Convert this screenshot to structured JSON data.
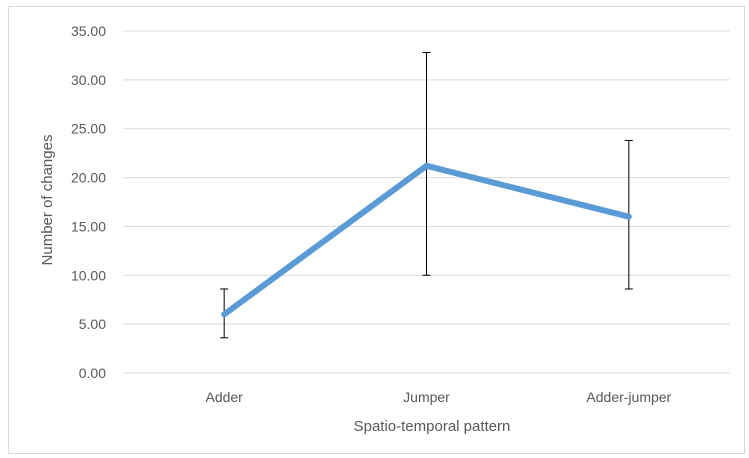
{
  "chart_data": {
    "type": "line",
    "title": "",
    "xlabel": "Spatio-temporal pattern",
    "ylabel": "Number of changes",
    "categories": [
      "Adder",
      "Jumper",
      "Adder-jumper"
    ],
    "series": [
      {
        "values": [
          6.0,
          21.2,
          16.0
        ],
        "error_low": [
          3.6,
          10.0,
          8.6
        ],
        "error_high": [
          8.6,
          32.8,
          23.8
        ]
      }
    ],
    "ylim": [
      0,
      35
    ],
    "yticks": [
      "0.00",
      "5.00",
      "10.00",
      "15.00",
      "20.00",
      "25.00",
      "30.00",
      "35.00"
    ],
    "ytick_values": [
      0,
      5,
      10,
      15,
      20,
      25,
      30,
      35
    ],
    "grid": true,
    "legend": "none",
    "line_color": "#5b9bd5",
    "error_bar_color": "#000000",
    "grid_color": "#d9d9d9"
  }
}
